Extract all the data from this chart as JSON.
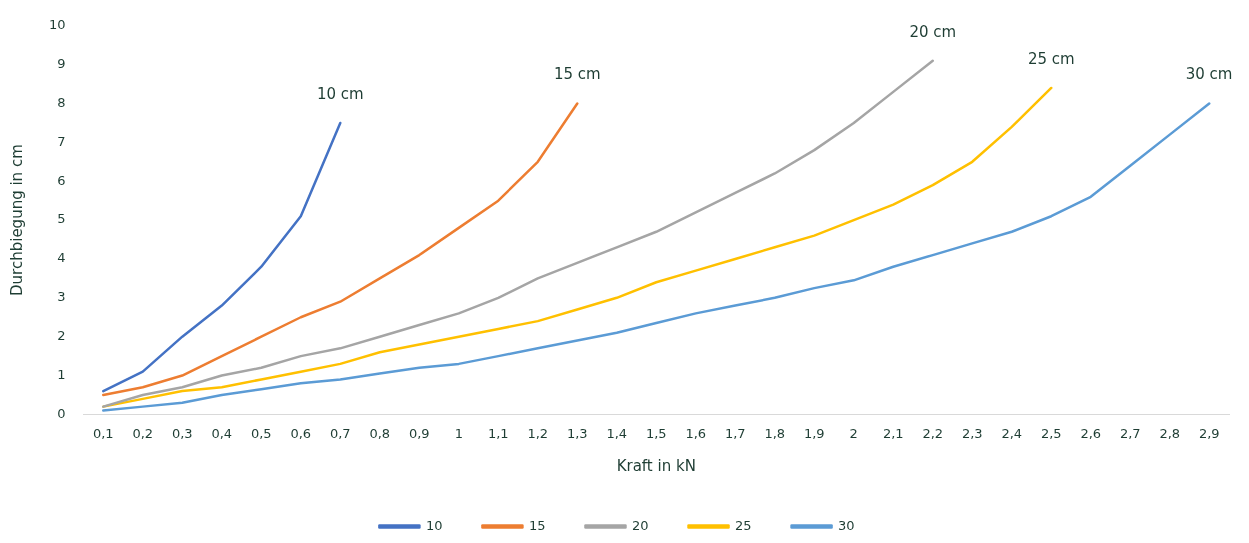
{
  "chart_data": {
    "type": "line",
    "xlabel": "Kraft in kN",
    "ylabel": "Durchbiegung in cm",
    "categories": [
      "0,1",
      "0,2",
      "0,3",
      "0,4",
      "0,5",
      "0,6",
      "0,7",
      "0,8",
      "0,9",
      "1",
      "1,1",
      "1,2",
      "1,3",
      "1,4",
      "1,5",
      "1,6",
      "1,7",
      "1,8",
      "1,9",
      "2",
      "2,1",
      "2,2",
      "2,3",
      "2,4",
      "2,5",
      "2,6",
      "2,7",
      "2,8",
      "2,9"
    ],
    "series": [
      {
        "name": "10",
        "color": "#4472c4",
        "values": [
          0.6,
          1.1,
          2.0,
          2.8,
          3.8,
          5.1,
          7.5,
          null,
          null,
          null,
          null,
          null,
          null,
          null,
          null,
          null,
          null,
          null,
          null,
          null,
          null,
          null,
          null,
          null,
          null,
          null,
          null,
          null,
          null
        ]
      },
      {
        "name": "15",
        "color": "#ed7d31",
        "values": [
          0.5,
          0.7,
          1.0,
          1.5,
          2.0,
          2.5,
          2.9,
          3.5,
          4.1,
          4.8,
          5.5,
          6.5,
          8.0,
          null,
          null,
          null,
          null,
          null,
          null,
          null,
          null,
          null,
          null,
          null,
          null,
          null,
          null,
          null,
          null
        ]
      },
      {
        "name": "20",
        "color": "#a5a5a5",
        "values": [
          0.2,
          0.5,
          0.7,
          1.0,
          1.2,
          1.5,
          1.7,
          2.0,
          2.3,
          2.6,
          3.0,
          3.5,
          3.9,
          4.3,
          4.7,
          5.2,
          5.7,
          6.2,
          6.8,
          7.5,
          8.3,
          9.1,
          null,
          null,
          null,
          null,
          null,
          null,
          null
        ]
      },
      {
        "name": "25",
        "color": "#ffc000",
        "values": [
          0.2,
          0.4,
          0.6,
          0.7,
          0.9,
          1.1,
          1.3,
          1.6,
          1.8,
          2.0,
          2.2,
          2.4,
          2.7,
          3.0,
          3.4,
          3.7,
          4.0,
          4.3,
          4.6,
          5.0,
          5.4,
          5.9,
          6.5,
          7.4,
          8.4,
          null,
          null,
          null,
          null
        ]
      },
      {
        "name": "30",
        "color": "#5b9bd5",
        "values": [
          0.1,
          0.2,
          0.3,
          0.5,
          0.65,
          0.8,
          0.9,
          1.05,
          1.2,
          1.3,
          1.5,
          1.7,
          1.9,
          2.1,
          2.35,
          2.6,
          2.8,
          3.0,
          3.25,
          3.45,
          3.8,
          4.1,
          4.4,
          4.7,
          5.1,
          5.6,
          6.4,
          7.2,
          8.0
        ]
      }
    ],
    "ylim": [
      0,
      10
    ],
    "yticks": [
      0,
      1,
      2,
      3,
      4,
      5,
      6,
      7,
      8,
      9,
      10
    ],
    "grid": false,
    "legend": "bottom",
    "marker": "none",
    "line_style": "solid",
    "annotations": [
      "10 cm",
      "15 cm",
      "20 cm",
      "25 cm",
      "30 cm"
    ]
  }
}
